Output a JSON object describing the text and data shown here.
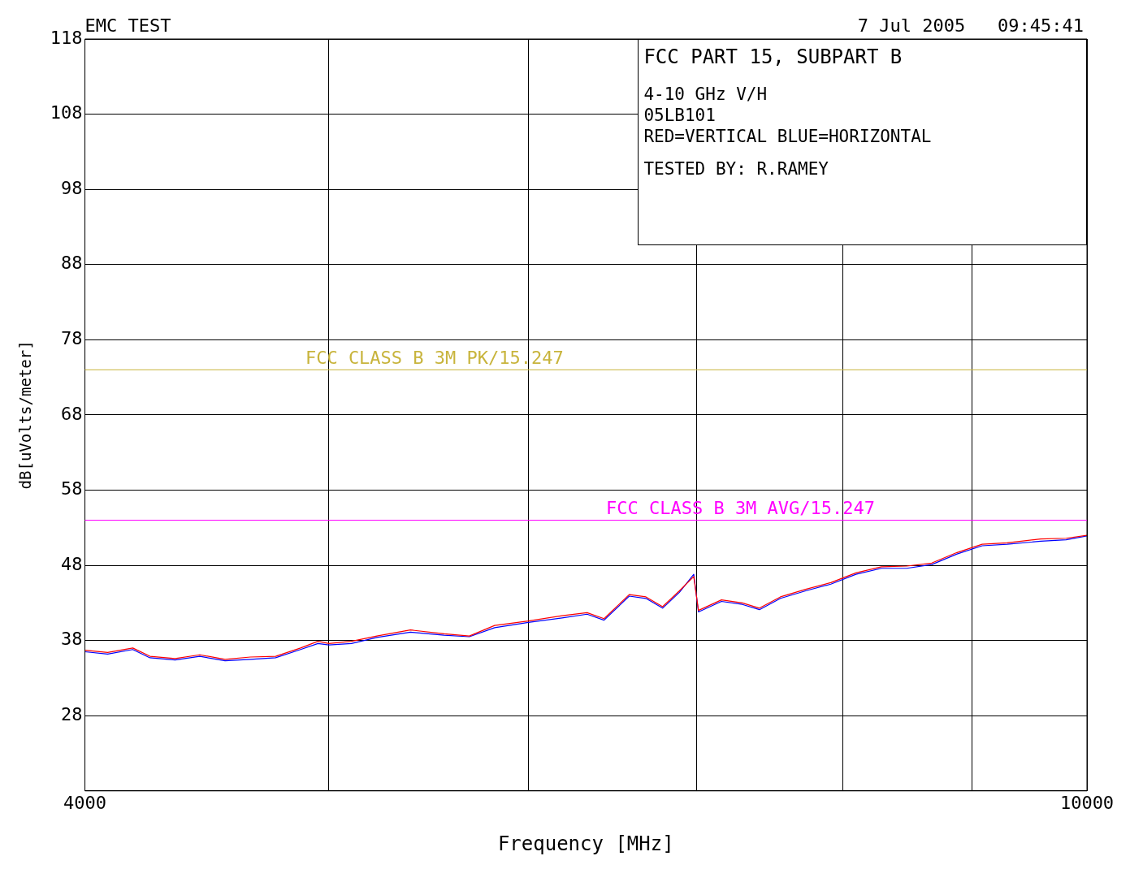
{
  "chart_data": {
    "type": "line",
    "title": "EMC TEST",
    "subtitle": "7 Jul 2005   09:45:41",
    "xlabel": "Frequency [MHz]",
    "ylabel": "dB[uVolts/meter]",
    "log": "x",
    "grid": true,
    "legend": false,
    "marker": "none",
    "xlim": [
      4000,
      10000
    ],
    "xticks": [
      {
        "value": 4000,
        "label": "4000"
      },
      {
        "value": 5000,
        "label": null
      },
      {
        "value": 6000,
        "label": null
      },
      {
        "value": 7000,
        "label": null
      },
      {
        "value": 8000,
        "label": null
      },
      {
        "value": 9000,
        "label": null
      },
      {
        "value": 10000,
        "label": "10000"
      }
    ],
    "ylim": [
      18,
      118
    ],
    "yticks": [
      {
        "value": 18,
        "label": null
      },
      28,
      38,
      48,
      58,
      68,
      78,
      88,
      98,
      108,
      118
    ],
    "x": [
      4000,
      4084,
      4179,
      4245,
      4344,
      4443,
      4547,
      4653,
      4762,
      4872,
      4950,
      5000,
      5104,
      5224,
      5387,
      5555,
      5685,
      5818,
      6000,
      6188,
      6331,
      6430,
      6580,
      6681,
      6784,
      6889,
      6980,
      7010,
      7159,
      7297,
      7412,
      7556,
      7732,
      7912,
      8096,
      8287,
      8481,
      8677,
      8880,
      9086,
      9297,
      9587,
      9812,
      10000
    ],
    "series": [
      {
        "color": "#ff0000",
        "values": [
          36.7,
          36.4,
          37.0,
          35.9,
          35.6,
          36.1,
          35.5,
          35.8,
          35.9,
          37.0,
          37.9,
          37.6,
          37.9,
          38.6,
          39.4,
          38.9,
          38.6,
          40.0,
          40.6,
          41.3,
          41.7,
          40.9,
          44.1,
          43.8,
          42.5,
          44.6,
          46.5,
          42.0,
          43.4,
          43.0,
          42.3,
          43.8,
          44.8,
          45.7,
          47.0,
          47.8,
          47.9,
          48.3,
          49.7,
          50.8,
          51.0,
          51.5,
          51.6,
          52.0
        ]
      },
      {
        "color": "#0000ff",
        "values": [
          36.5,
          36.2,
          36.8,
          35.7,
          35.4,
          35.9,
          35.3,
          35.5,
          35.7,
          36.8,
          37.6,
          37.4,
          37.6,
          38.4,
          39.1,
          38.7,
          38.5,
          39.7,
          40.4,
          41.0,
          41.5,
          40.7,
          43.9,
          43.6,
          42.3,
          44.4,
          46.8,
          41.8,
          43.2,
          42.8,
          42.1,
          43.6,
          44.6,
          45.5,
          46.8,
          47.6,
          47.6,
          48.1,
          49.5,
          50.6,
          50.8,
          51.2,
          51.4,
          51.9
        ]
      }
    ],
    "ref_lines": [
      {
        "axis": "y",
        "value": 74,
        "label": "FCC CLASS B 3M PK/15.247",
        "color": "#c8b43c"
      },
      {
        "axis": "y",
        "value": 54,
        "label": "FCC CLASS B 3M AVG/15.247",
        "color": "#ff00ff"
      }
    ],
    "annotations": [
      "FCC PART 15, SUBPART B",
      "4-10 GHz V/H",
      "05LB101",
      "RED=VERTICAL BLUE=HORIZONTAL",
      "TESTED BY: R.RAMEY"
    ]
  }
}
